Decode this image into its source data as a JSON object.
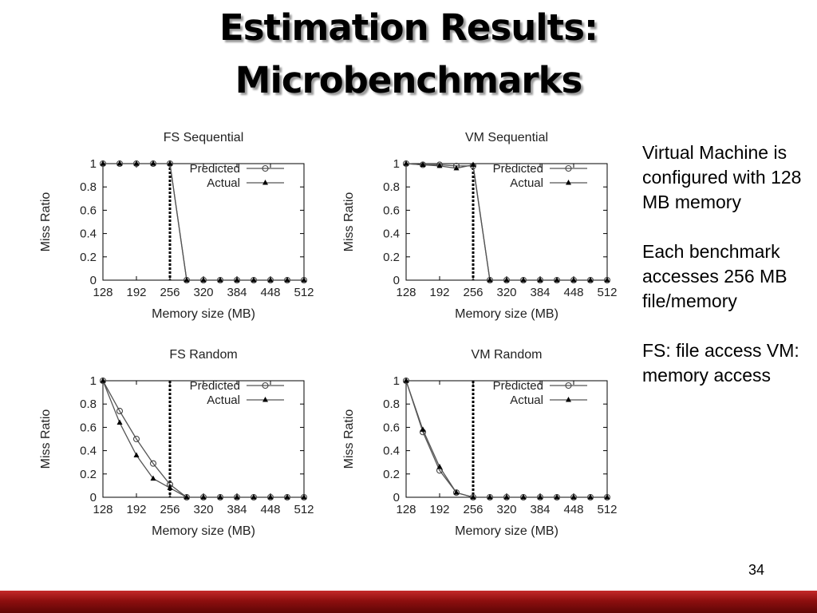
{
  "slide": {
    "title_lines": [
      "Estimation Results:",
      "Microbenchmarks"
    ],
    "notes": [
      "Virtual Machine is configured with 128 MB memory",
      "Each benchmark accesses 256 MB file/memory",
      "FS: file access VM: memory access"
    ],
    "page_number": "34",
    "colors": {
      "footer_bar": "#8e0f0f",
      "series_line": "#555555",
      "threshold_line": "#000000"
    }
  },
  "chart_data": [
    {
      "type": "line",
      "title": "FS Sequential",
      "xlabel": "Memory size (MB)",
      "ylabel": "Miss Ratio",
      "xlim": [
        128,
        512
      ],
      "ylim": [
        0,
        1
      ],
      "xticks": [
        128,
        192,
        256,
        320,
        384,
        448,
        512
      ],
      "yticks": [
        0,
        0.2,
        0.4,
        0.6,
        0.8,
        1
      ],
      "ytick_labels": [
        "0",
        "0.2",
        "0.4",
        "0.6",
        "0.8",
        "1"
      ],
      "threshold_x": 256,
      "legend": "top-right",
      "series": [
        {
          "name": "Predicted",
          "marker": "circle",
          "x": [
            128,
            160,
            192,
            224,
            256,
            288,
            320,
            352,
            384,
            416,
            448,
            480,
            512
          ],
          "y": [
            1,
            1,
            1,
            1,
            1,
            0,
            0,
            0,
            0,
            0,
            0,
            0,
            0
          ]
        },
        {
          "name": "Actual",
          "marker": "triangle",
          "x": [
            128,
            160,
            192,
            224,
            256,
            288,
            320,
            352,
            384,
            416,
            448,
            480,
            512
          ],
          "y": [
            1,
            1,
            1,
            1,
            1,
            0,
            0,
            0,
            0,
            0,
            0,
            0,
            0
          ]
        }
      ]
    },
    {
      "type": "line",
      "title": "VM Sequential",
      "xlabel": "Memory size (MB)",
      "ylabel": "Miss Ratio",
      "xlim": [
        128,
        512
      ],
      "ylim": [
        0,
        1
      ],
      "xticks": [
        128,
        192,
        256,
        320,
        384,
        448,
        512
      ],
      "yticks": [
        0,
        0.2,
        0.4,
        0.6,
        0.8,
        1
      ],
      "ytick_labels": [
        "0",
        "0.2",
        "0.4",
        "0.6",
        "0.8",
        "1"
      ],
      "threshold_x": 256,
      "legend": "top-right",
      "series": [
        {
          "name": "Predicted",
          "marker": "circle",
          "x": [
            128,
            160,
            192,
            224,
            256,
            288,
            320,
            352,
            384,
            416,
            448,
            480,
            512
          ],
          "y": [
            1,
            0.99,
            0.99,
            0.98,
            0.98,
            0,
            0,
            0,
            0,
            0,
            0,
            0,
            0
          ]
        },
        {
          "name": "Actual",
          "marker": "triangle",
          "x": [
            128,
            160,
            192,
            224,
            256,
            288,
            320,
            352,
            384,
            416,
            448,
            480,
            512
          ],
          "y": [
            1,
            0.99,
            0.98,
            0.96,
            0.99,
            0,
            0,
            0,
            0,
            0,
            0,
            0,
            0
          ]
        }
      ]
    },
    {
      "type": "line",
      "title": "FS Random",
      "xlabel": "Memory size (MB)",
      "ylabel": "Miss Ratio",
      "xlim": [
        128,
        512
      ],
      "ylim": [
        0,
        1
      ],
      "xticks": [
        128,
        192,
        256,
        320,
        384,
        448,
        512
      ],
      "yticks": [
        0,
        0.2,
        0.4,
        0.6,
        0.8,
        1
      ],
      "ytick_labels": [
        "0",
        "0.2",
        "0.4",
        "0.6",
        "0.8",
        "1"
      ],
      "threshold_x": 256,
      "legend": "top-right",
      "series": [
        {
          "name": "Predicted",
          "marker": "circle",
          "x": [
            128,
            160,
            192,
            224,
            256,
            288,
            320,
            352,
            384,
            416,
            448,
            480,
            512
          ],
          "y": [
            1,
            0.74,
            0.5,
            0.29,
            0.11,
            0,
            0,
            0,
            0,
            0,
            0,
            0,
            0
          ]
        },
        {
          "name": "Actual",
          "marker": "triangle",
          "x": [
            128,
            160,
            192,
            224,
            256,
            288,
            320,
            352,
            384,
            416,
            448,
            480,
            512
          ],
          "y": [
            1,
            0.64,
            0.36,
            0.16,
            0.08,
            0,
            0,
            0,
            0,
            0,
            0,
            0,
            0
          ]
        }
      ]
    },
    {
      "type": "line",
      "title": "VM Random",
      "xlabel": "Memory size (MB)",
      "ylabel": "Miss Ratio",
      "xlim": [
        128,
        512
      ],
      "ylim": [
        0,
        1
      ],
      "xticks": [
        128,
        192,
        256,
        320,
        384,
        448,
        512
      ],
      "yticks": [
        0,
        0.2,
        0.4,
        0.6,
        0.8,
        1
      ],
      "ytick_labels": [
        "0",
        "0.2",
        "0.4",
        "0.6",
        "0.8",
        "1"
      ],
      "threshold_x": 256,
      "legend": "top-right",
      "series": [
        {
          "name": "Predicted",
          "marker": "circle",
          "x": [
            128,
            160,
            192,
            224,
            256,
            288,
            320,
            352,
            384,
            416,
            448,
            480,
            512
          ],
          "y": [
            1,
            0.56,
            0.23,
            0.04,
            0,
            0,
            0,
            0,
            0,
            0,
            0,
            0,
            0
          ]
        },
        {
          "name": "Actual",
          "marker": "triangle",
          "x": [
            128,
            160,
            192,
            224,
            256,
            288,
            320,
            352,
            384,
            416,
            448,
            480,
            512
          ],
          "y": [
            1,
            0.58,
            0.26,
            0.04,
            0,
            0,
            0,
            0,
            0,
            0,
            0,
            0,
            0
          ]
        }
      ]
    }
  ]
}
